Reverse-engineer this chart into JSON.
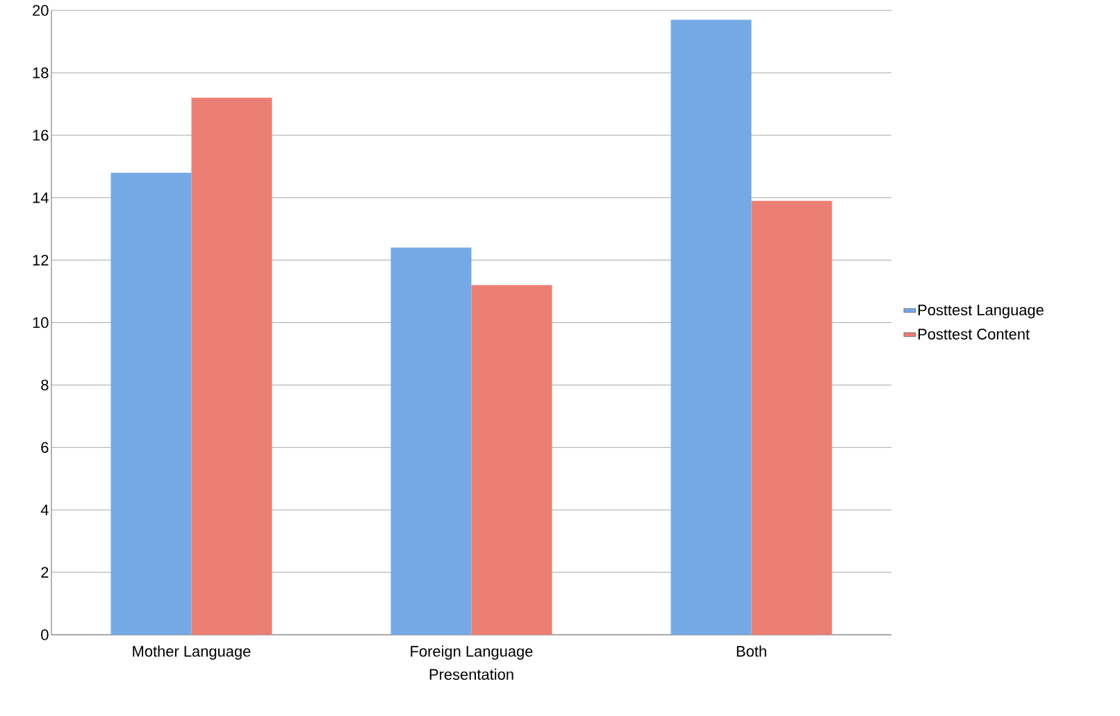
{
  "chart_data": {
    "type": "bar",
    "xlabel": "Presentation",
    "categories": [
      "Mother Language",
      "Foreign Language",
      "Both"
    ],
    "series": [
      {
        "name": "Posttest Language",
        "color": "#75a9e6",
        "values": [
          14.8,
          12.4,
          19.7
        ]
      },
      {
        "name": "Posttest Content",
        "color": "#ec7f74",
        "values": [
          17.2,
          11.2,
          13.9
        ]
      }
    ],
    "ylim": [
      0,
      20
    ],
    "yticks": [
      0,
      2,
      4,
      6,
      8,
      10,
      12,
      14,
      16,
      18,
      20
    ],
    "grid": "y",
    "legend": "right"
  }
}
